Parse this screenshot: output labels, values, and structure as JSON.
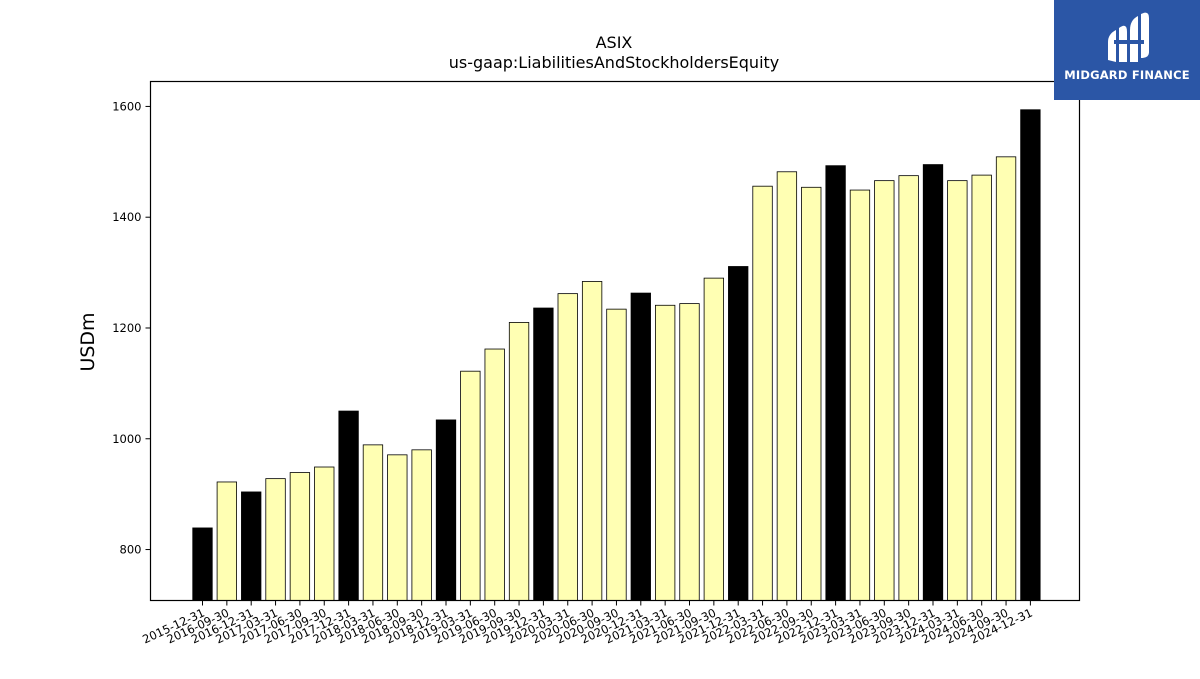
{
  "chart_data": {
    "type": "bar",
    "title": "ASIX",
    "subtitle": "us-gaap:LiabilitiesAndStockholdersEquity",
    "xlabel": "",
    "ylabel": "USDm",
    "ylim": [
      708,
      1645
    ],
    "yticks": [
      800,
      1000,
      1200,
      1400,
      1600
    ],
    "grid": false,
    "legend": "none",
    "colors": {
      "annual": "#000000",
      "quarterly": "#ffffb3",
      "edge": "#000000"
    },
    "categories": [
      "2015-12-31",
      "2016-09-30",
      "2016-12-31",
      "2017-03-31",
      "2017-06-30",
      "2017-09-30",
      "2017-12-31",
      "2018-03-31",
      "2018-06-30",
      "2018-09-30",
      "2018-12-31",
      "2019-03-31",
      "2019-06-30",
      "2019-09-30",
      "2019-12-31",
      "2020-03-31",
      "2020-06-30",
      "2020-09-30",
      "2020-12-31",
      "2021-03-31",
      "2021-06-30",
      "2021-09-30",
      "2021-12-31",
      "2022-03-31",
      "2022-06-30",
      "2022-09-30",
      "2022-12-31",
      "2023-03-31",
      "2023-06-30",
      "2023-09-30",
      "2023-12-31",
      "2024-03-31",
      "2024-06-30",
      "2024-09-30",
      "2024-12-31"
    ],
    "values": [
      839,
      922,
      904,
      928,
      939,
      949,
      1050,
      989,
      971,
      980,
      1034,
      1122,
      1162,
      1210,
      1236,
      1262,
      1284,
      1234,
      1263,
      1241,
      1244,
      1290,
      1311,
      1456,
      1482,
      1454,
      1493,
      1449,
      1466,
      1475,
      1495,
      1466,
      1476,
      1509,
      1594
    ],
    "annual_flags": [
      true,
      false,
      true,
      false,
      false,
      false,
      true,
      false,
      false,
      false,
      true,
      false,
      false,
      false,
      true,
      false,
      false,
      false,
      true,
      false,
      false,
      false,
      true,
      false,
      false,
      false,
      true,
      false,
      false,
      false,
      true,
      false,
      false,
      false,
      true
    ]
  },
  "logo": {
    "text": "MIDGARD FINANCE"
  }
}
